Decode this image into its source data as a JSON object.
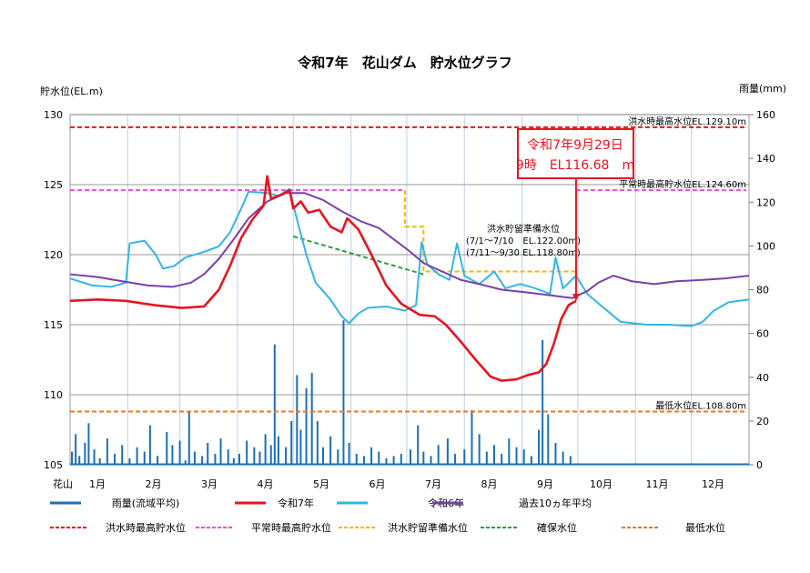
{
  "chart_data": {
    "type": "line",
    "title": "令和7年　花山ダム　貯水位グラフ",
    "ylabel": "貯水位(EL.m)",
    "y2label": "雨量(mm)",
    "xlabel_prefix": "花山",
    "ylim": [
      105,
      130
    ],
    "y2lim": [
      0,
      160
    ],
    "yticks": [
      "105",
      "110",
      "115",
      "120",
      "125",
      "130"
    ],
    "yticks_values": [
      105,
      110,
      115,
      120,
      125,
      130
    ],
    "y2ticks": [
      "0",
      "20",
      "40",
      "60",
      "80",
      "100",
      "120",
      "140",
      "160"
    ],
    "y2ticks_values": [
      0,
      20,
      40,
      60,
      80,
      100,
      120,
      140,
      160
    ],
    "months": [
      "1月",
      "2月",
      "3月",
      "4月",
      "5月",
      "6月",
      "7月",
      "8月",
      "9月",
      "10月",
      "11月",
      "12月"
    ],
    "x_unit": "day of year",
    "colors": {
      "rain": "#1a6fb5",
      "r7": "#e8141e",
      "r6": "#33b5e6",
      "avg10": "#7a3fa8",
      "flood_max": "#e8141e",
      "normal_max": "#e84fd4",
      "flood_prep": "#f5b800",
      "secure": "#2a9e48",
      "min": "#e87a1e"
    },
    "series": [
      {
        "key": "r7",
        "name": "令和7年",
        "points": [
          [
            0,
            116.7
          ],
          [
            15,
            116.8
          ],
          [
            30,
            116.7
          ],
          [
            45,
            116.4
          ],
          [
            60,
            116.2
          ],
          [
            72,
            116.3
          ],
          [
            80,
            117.5
          ],
          [
            86,
            119.2
          ],
          [
            92,
            121.2
          ],
          [
            98,
            122.5
          ],
          [
            104,
            123.5
          ],
          [
            106,
            125.6
          ],
          [
            108,
            124.0
          ],
          [
            114,
            124.3
          ],
          [
            118,
            124.6
          ],
          [
            120,
            123.3
          ],
          [
            124,
            123.8
          ],
          [
            128,
            123.0
          ],
          [
            134,
            123.2
          ],
          [
            140,
            122.0
          ],
          [
            146,
            121.6
          ],
          [
            149,
            122.6
          ],
          [
            155,
            121.8
          ],
          [
            162,
            120.0
          ],
          [
            170,
            117.8
          ],
          [
            178,
            116.5
          ],
          [
            188,
            115.7
          ],
          [
            196,
            115.6
          ],
          [
            202,
            115.0
          ],
          [
            210,
            113.8
          ],
          [
            218,
            112.5
          ],
          [
            226,
            111.3
          ],
          [
            232,
            111.0
          ],
          [
            240,
            111.1
          ],
          [
            246,
            111.4
          ],
          [
            252,
            111.6
          ],
          [
            256,
            112.2
          ],
          [
            260,
            113.6
          ],
          [
            264,
            115.4
          ],
          [
            268,
            116.4
          ],
          [
            272,
            116.7
          ]
        ]
      },
      {
        "key": "r6",
        "name": "令和6年",
        "points": [
          [
            0,
            118.3
          ],
          [
            12,
            117.8
          ],
          [
            22,
            117.7
          ],
          [
            30,
            118.0
          ],
          [
            32,
            120.8
          ],
          [
            40,
            121.0
          ],
          [
            46,
            120.0
          ],
          [
            50,
            119.0
          ],
          [
            56,
            119.2
          ],
          [
            62,
            119.8
          ],
          [
            72,
            120.2
          ],
          [
            80,
            120.6
          ],
          [
            86,
            121.6
          ],
          [
            92,
            123.3
          ],
          [
            96,
            124.5
          ],
          [
            106,
            124.4
          ],
          [
            112,
            124.2
          ],
          [
            118,
            124.7
          ],
          [
            122,
            122.5
          ],
          [
            127,
            120.0
          ],
          [
            132,
            118.0
          ],
          [
            140,
            116.8
          ],
          [
            146,
            115.6
          ],
          [
            150,
            115.1
          ],
          [
            155,
            115.8
          ],
          [
            160,
            116.2
          ],
          [
            170,
            116.3
          ],
          [
            180,
            116.0
          ],
          [
            186,
            116.4
          ],
          [
            189,
            120.9
          ],
          [
            192,
            119.3
          ],
          [
            198,
            118.6
          ],
          [
            204,
            118.2
          ],
          [
            208,
            120.8
          ],
          [
            212,
            118.5
          ],
          [
            220,
            117.9
          ],
          [
            228,
            118.8
          ],
          [
            234,
            117.6
          ],
          [
            242,
            117.9
          ],
          [
            250,
            117.6
          ],
          [
            258,
            117.2
          ],
          [
            261,
            119.8
          ],
          [
            265,
            117.6
          ],
          [
            272,
            118.5
          ],
          [
            278,
            117.2
          ],
          [
            286,
            116.3
          ],
          [
            296,
            115.2
          ],
          [
            310,
            115.0
          ],
          [
            322,
            115.0
          ],
          [
            334,
            114.9
          ],
          [
            340,
            115.2
          ],
          [
            346,
            116.0
          ],
          [
            354,
            116.6
          ],
          [
            365,
            116.8
          ]
        ]
      },
      {
        "key": "avg10",
        "name": "過去10ヵ年平均",
        "points": [
          [
            0,
            118.6
          ],
          [
            15,
            118.4
          ],
          [
            28,
            118.1
          ],
          [
            42,
            117.8
          ],
          [
            55,
            117.7
          ],
          [
            65,
            118.0
          ],
          [
            72,
            118.6
          ],
          [
            80,
            119.7
          ],
          [
            88,
            121.1
          ],
          [
            96,
            122.6
          ],
          [
            106,
            123.8
          ],
          [
            116,
            124.4
          ],
          [
            126,
            124.4
          ],
          [
            136,
            123.9
          ],
          [
            146,
            123.1
          ],
          [
            156,
            122.4
          ],
          [
            166,
            121.9
          ],
          [
            174,
            121.1
          ],
          [
            182,
            120.3
          ],
          [
            190,
            119.4
          ],
          [
            200,
            118.8
          ],
          [
            210,
            118.2
          ],
          [
            220,
            117.9
          ],
          [
            232,
            117.5
          ],
          [
            246,
            117.3
          ],
          [
            258,
            117.1
          ],
          [
            270,
            116.9
          ],
          [
            278,
            117.4
          ],
          [
            284,
            118.0
          ],
          [
            292,
            118.5
          ],
          [
            302,
            118.1
          ],
          [
            314,
            117.9
          ],
          [
            326,
            118.1
          ],
          [
            340,
            118.2
          ],
          [
            352,
            118.3
          ],
          [
            365,
            118.5
          ]
        ]
      }
    ],
    "rain": {
      "name": "雨量(流域平均)",
      "days": [
        1,
        3,
        5,
        8,
        10,
        13,
        16,
        20,
        24,
        28,
        32,
        36,
        40,
        43,
        47,
        52,
        55,
        59,
        62,
        64,
        67,
        71,
        74,
        78,
        81,
        85,
        88,
        91,
        95,
        99,
        102,
        105,
        108,
        110,
        112,
        116,
        119,
        122,
        124,
        127,
        130,
        133,
        136,
        140,
        144,
        147,
        150,
        154,
        158,
        162,
        166,
        170,
        174,
        178,
        183,
        187,
        190,
        194,
        198,
        203,
        207,
        212,
        216,
        220,
        224,
        228,
        232,
        236,
        240,
        244,
        248,
        252,
        254,
        257,
        261,
        265,
        269
      ],
      "values": [
        6,
        14,
        4,
        10,
        19,
        7,
        3,
        12,
        5,
        9,
        3,
        8,
        6,
        18,
        4,
        15,
        9,
        11,
        2,
        24,
        6,
        4,
        10,
        5,
        12,
        7,
        3,
        5,
        11,
        8,
        6,
        14,
        9,
        55,
        13,
        8,
        20,
        41,
        16,
        35,
        42,
        20,
        8,
        13,
        7,
        66,
        10,
        5,
        4,
        8,
        6,
        3,
        4,
        5,
        7,
        18,
        6,
        4,
        9,
        12,
        5,
        7,
        25,
        14,
        6,
        9,
        5,
        12,
        8,
        7,
        4,
        16,
        57,
        23,
        10,
        6,
        4
      ]
    },
    "reference_lines": [
      {
        "key": "flood_max",
        "name": "洪水時最高貯水位",
        "value": 129.1,
        "label": "洪水時最高水位EL.129.10m"
      },
      {
        "key": "normal_max",
        "name": "平常時最高貯水位",
        "value": 124.6,
        "label": "平常時最高貯水位EL.124.60m",
        "gap_days": [
          180,
          272
        ]
      },
      {
        "key": "flood_prep",
        "name": "洪水貯留準備水位",
        "segments": [
          [
            [
              180,
              124.6
            ],
            [
              180,
              122.0
            ],
            [
              190,
              122.0
            ],
            [
              190,
              118.8
            ],
            [
              272,
              118.8
            ],
            [
              272,
              124.6
            ]
          ]
        ],
        "label_lines": [
          "洪水貯留準備水位",
          "(7/1～7/10　EL.122.00m)",
          "(7/11～9/30 EL.118.80m)"
        ]
      },
      {
        "key": "secure",
        "name": "確保水位",
        "points": [
          [
            120,
            121.3
          ],
          [
            190,
            118.6
          ]
        ]
      },
      {
        "key": "min",
        "name": "最低水位",
        "value": 108.8,
        "label": "最低水位EL.108.80m"
      }
    ],
    "callout": {
      "line1": "令和7年9月29日",
      "line2": "9時　EL116.68　m",
      "day": 272,
      "value": 116.68
    },
    "legend": {
      "row1": [
        {
          "key": "rain",
          "label": "雨量(流域平均)"
        },
        {
          "key": "r7",
          "label": "令和7年"
        },
        {
          "key": "r6",
          "label": "令和6年"
        },
        {
          "key": "avg10",
          "label": "過去10ヵ年平均"
        }
      ],
      "row2": [
        {
          "key": "flood_max",
          "label": "洪水時最高貯水位"
        },
        {
          "key": "normal_max",
          "label": "平常時最高貯水位"
        },
        {
          "key": "flood_prep",
          "label": "洪水貯留準備水位"
        },
        {
          "key": "secure",
          "label": "確保水位"
        },
        {
          "key": "min",
          "label": "最低水位"
        }
      ],
      "placement": "bottom"
    }
  }
}
